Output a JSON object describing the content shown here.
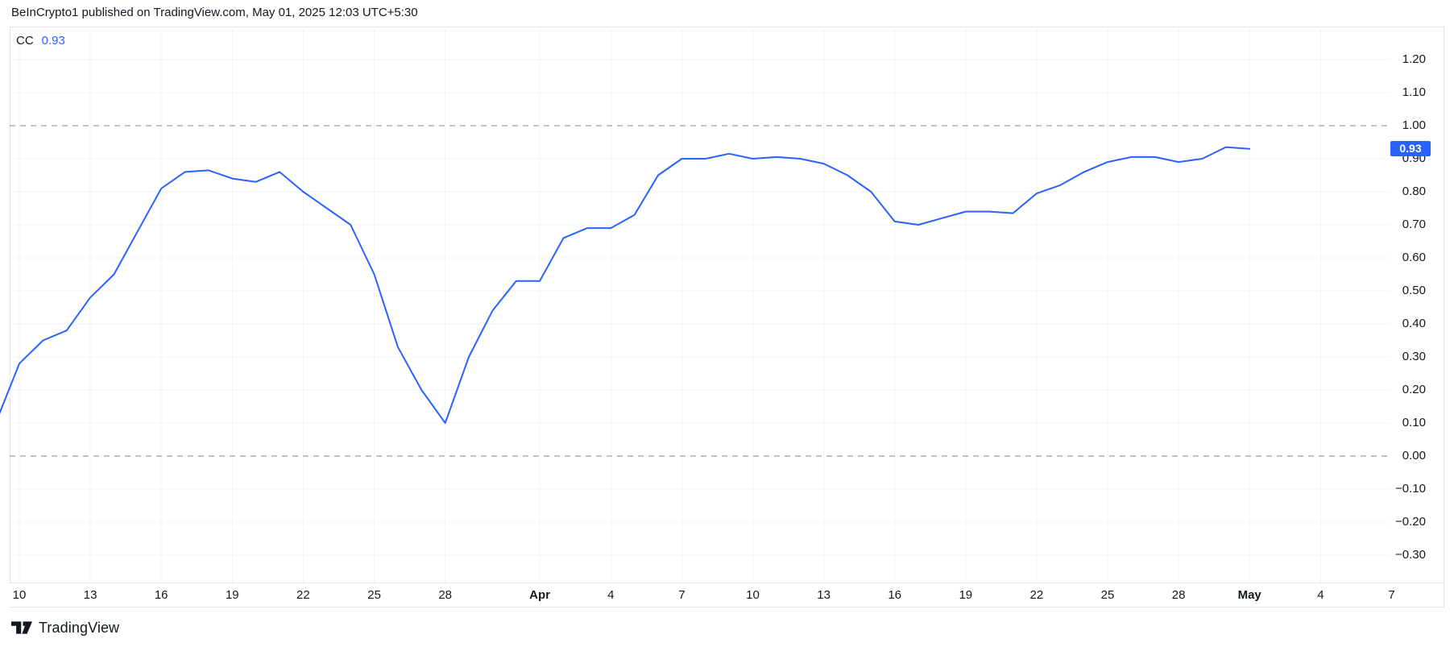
{
  "header": {
    "attribution": "BeInCrypto1 published on TradingView.com, May 01, 2025 12:03 UTC+5:30"
  },
  "legend": {
    "symbol": "CC",
    "value": "0.93"
  },
  "badge": {
    "value": "0.93",
    "color": "#2962ff",
    "text_color": "#ffffff"
  },
  "footer": {
    "brand": "TradingView"
  },
  "colors": {
    "line": "#2962ff",
    "accent_blue": "#2962ff",
    "text": "#131722",
    "grid": "#f0f3fa",
    "dashed_line": "#82868f",
    "border": "#e0e3eb",
    "background": "#ffffff"
  },
  "chart_data": {
    "type": "line",
    "series_name": "CC",
    "last_value": 0.93,
    "x": [
      "Mar 9",
      "Mar 10",
      "Mar 11",
      "Mar 12",
      "Mar 13",
      "Mar 14",
      "Mar 15",
      "Mar 16",
      "Mar 17",
      "Mar 18",
      "Mar 19",
      "Mar 20",
      "Mar 21",
      "Mar 22",
      "Mar 23",
      "Mar 24",
      "Mar 25",
      "Mar 26",
      "Mar 27",
      "Mar 28",
      "Mar 29",
      "Mar 30",
      "Mar 31",
      "Apr 1",
      "Apr 2",
      "Apr 3",
      "Apr 4",
      "Apr 5",
      "Apr 6",
      "Apr 7",
      "Apr 8",
      "Apr 9",
      "Apr 10",
      "Apr 11",
      "Apr 12",
      "Apr 13",
      "Apr 14",
      "Apr 15",
      "Apr 16",
      "Apr 17",
      "Apr 18",
      "Apr 19",
      "Apr 20",
      "Apr 21",
      "Apr 22",
      "Apr 23",
      "Apr 24",
      "Apr 25",
      "Apr 26",
      "Apr 27",
      "Apr 28",
      "Apr 29",
      "Apr 30",
      "May 1"
    ],
    "values": [
      0.1,
      0.28,
      0.35,
      0.38,
      0.48,
      0.55,
      0.68,
      0.81,
      0.86,
      0.865,
      0.84,
      0.83,
      0.86,
      0.8,
      0.75,
      0.7,
      0.55,
      0.33,
      0.2,
      0.1,
      0.3,
      0.44,
      0.53,
      0.53,
      0.66,
      0.69,
      0.69,
      0.73,
      0.85,
      0.9,
      0.9,
      0.915,
      0.9,
      0.905,
      0.9,
      0.885,
      0.85,
      0.8,
      0.71,
      0.7,
      0.72,
      0.74,
      0.74,
      0.735,
      0.795,
      0.82,
      0.86,
      0.89,
      0.905,
      0.905,
      0.89,
      0.9,
      0.935,
      0.93
    ],
    "y_axis": {
      "labels": [
        "1.20",
        "1.10",
        "1.00",
        "0.90",
        "0.80",
        "0.70",
        "0.60",
        "0.50",
        "0.40",
        "0.30",
        "0.20",
        "0.10",
        "0.00",
        "−0.10",
        "−0.20",
        "−0.30"
      ],
      "dashed_levels": [
        1,
        0
      ],
      "ylim": [
        -0.38,
        1.29
      ]
    },
    "x_axis": {
      "ticks": [
        {
          "label": "10",
          "day": 0
        },
        {
          "label": "13",
          "day": 3
        },
        {
          "label": "16",
          "day": 6
        },
        {
          "label": "19",
          "day": 9
        },
        {
          "label": "22",
          "day": 12
        },
        {
          "label": "25",
          "day": 15
        },
        {
          "label": "28",
          "day": 18
        },
        {
          "label": "Apr",
          "day": 22,
          "bold": true
        },
        {
          "label": "4",
          "day": 25
        },
        {
          "label": "7",
          "day": 28
        },
        {
          "label": "10",
          "day": 31
        },
        {
          "label": "13",
          "day": 34
        },
        {
          "label": "16",
          "day": 37
        },
        {
          "label": "19",
          "day": 40
        },
        {
          "label": "22",
          "day": 43
        },
        {
          "label": "25",
          "day": 46
        },
        {
          "label": "28",
          "day": 49
        },
        {
          "label": "May",
          "day": 52,
          "bold": true
        },
        {
          "label": "4",
          "day": 55
        },
        {
          "label": "7",
          "day": 58
        }
      ]
    },
    "grid": true,
    "legend_position": "top-left"
  }
}
